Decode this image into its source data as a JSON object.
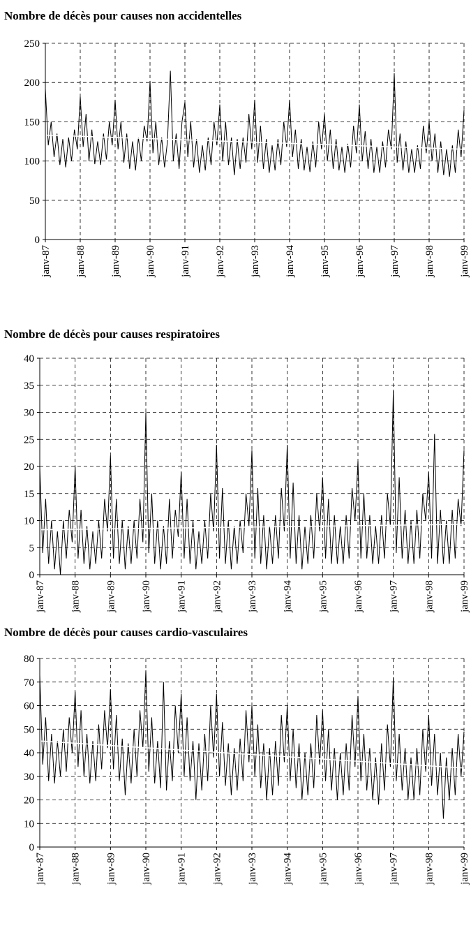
{
  "chart_data": [
    {
      "type": "line",
      "title": "Nombre de décès pour causes non accidentelles",
      "categories": [
        "janv-87",
        null,
        null,
        null,
        null,
        null,
        null,
        null,
        null,
        null,
        null,
        null,
        "janv-88",
        null,
        null,
        null,
        null,
        null,
        null,
        null,
        null,
        null,
        null,
        null,
        "janv-89",
        null,
        null,
        null,
        null,
        null,
        null,
        null,
        null,
        null,
        null,
        null,
        "janv-90",
        null,
        null,
        null,
        null,
        null,
        null,
        null,
        null,
        null,
        null,
        null,
        "janv-91",
        null,
        null,
        null,
        null,
        null,
        null,
        null,
        null,
        null,
        null,
        null,
        "janv-92",
        null,
        null,
        null,
        null,
        null,
        null,
        null,
        null,
        null,
        null,
        null,
        "janv-93",
        null,
        null,
        null,
        null,
        null,
        null,
        null,
        null,
        null,
        null,
        null,
        "janv-94",
        null,
        null,
        null,
        null,
        null,
        null,
        null,
        null,
        null,
        null,
        null,
        "janv-95",
        null,
        null,
        null,
        null,
        null,
        null,
        null,
        null,
        null,
        null,
        null,
        "janv-96",
        null,
        null,
        null,
        null,
        null,
        null,
        null,
        null,
        null,
        null,
        null,
        "janv-97",
        null,
        null,
        null,
        null,
        null,
        null,
        null,
        null,
        null,
        null,
        null,
        "janv-98",
        null,
        null,
        null,
        null,
        null,
        null,
        null,
        null,
        null,
        null,
        null,
        "janv-99"
      ],
      "series": [
        {
          "color": "#000000",
          "values": [
            192,
            120,
            150,
            105,
            135,
            95,
            128,
            92,
            130,
            100,
            140,
            115,
            182,
            118,
            160,
            100,
            140,
            96,
            125,
            95,
            135,
            102,
            150,
            120,
            178,
            115,
            150,
            98,
            135,
            90,
            125,
            88,
            130,
            100,
            145,
            125,
            202,
            110,
            150,
            95,
            130,
            92,
            125,
            215,
            100,
            135,
            90,
            150,
            175,
            105,
            150,
            92,
            128,
            85,
            120,
            88,
            130,
            95,
            150,
            120,
            172,
            100,
            150,
            95,
            130,
            82,
            128,
            90,
            130,
            98,
            160,
            115,
            178,
            98,
            145,
            90,
            128,
            85,
            120,
            88,
            128,
            95,
            150,
            118,
            178,
            105,
            140,
            90,
            128,
            88,
            118,
            86,
            125,
            92,
            150,
            115,
            160,
            100,
            140,
            90,
            128,
            88,
            118,
            85,
            122,
            92,
            145,
            110,
            172,
            100,
            138,
            90,
            128,
            85,
            118,
            85,
            125,
            92,
            140,
            115,
            212,
            98,
            135,
            88,
            125,
            85,
            115,
            85,
            120,
            90,
            145,
            110,
            150,
            100,
            135,
            85,
            125,
            82,
            115,
            80,
            120,
            85,
            140,
            105,
            165
          ]
        }
      ],
      "trendline": {
        "color": "#ffffff",
        "start": 133,
        "end": 115
      },
      "ylim": [
        0,
        250
      ],
      "yticks": [
        0,
        50,
        100,
        150,
        200,
        250
      ],
      "grid": true
    },
    {
      "type": "line",
      "title": "Nombre de décès pour causes respiratoires",
      "categories": [
        "janv-87",
        null,
        null,
        null,
        null,
        null,
        null,
        null,
        null,
        null,
        null,
        null,
        "janv-88",
        null,
        null,
        null,
        null,
        null,
        null,
        null,
        null,
        null,
        null,
        null,
        "janv-89",
        null,
        null,
        null,
        null,
        null,
        null,
        null,
        null,
        null,
        null,
        null,
        "janv-90",
        null,
        null,
        null,
        null,
        null,
        null,
        null,
        null,
        null,
        null,
        null,
        "janv-91",
        null,
        null,
        null,
        null,
        null,
        null,
        null,
        null,
        null,
        null,
        null,
        "janv-92",
        null,
        null,
        null,
        null,
        null,
        null,
        null,
        null,
        null,
        null,
        null,
        "janv-93",
        null,
        null,
        null,
        null,
        null,
        null,
        null,
        null,
        null,
        null,
        null,
        "janv-94",
        null,
        null,
        null,
        null,
        null,
        null,
        null,
        null,
        null,
        null,
        null,
        "janv-95",
        null,
        null,
        null,
        null,
        null,
        null,
        null,
        null,
        null,
        null,
        null,
        "janv-96",
        null,
        null,
        null,
        null,
        null,
        null,
        null,
        null,
        null,
        null,
        null,
        "janv-97",
        null,
        null,
        null,
        null,
        null,
        null,
        null,
        null,
        null,
        null,
        null,
        "janv-98",
        null,
        null,
        null,
        null,
        null,
        null,
        null,
        null,
        null,
        null,
        null,
        "janv-99"
      ],
      "series": [
        {
          "color": "#000000",
          "values": [
            20,
            4,
            14,
            2,
            10,
            1,
            8,
            0,
            10,
            3,
            12,
            6,
            20,
            3,
            12,
            2,
            9,
            1,
            8,
            2,
            10,
            3,
            14,
            8,
            22,
            3,
            14,
            2,
            10,
            1,
            9,
            2,
            10,
            3,
            14,
            6,
            30,
            4,
            15,
            2,
            10,
            1,
            9,
            2,
            14,
            3,
            12,
            7,
            19,
            3,
            14,
            2,
            10,
            1,
            8,
            2,
            10,
            3,
            15,
            8,
            24,
            3,
            16,
            2,
            10,
            1,
            9,
            2,
            10,
            4,
            15,
            9,
            23,
            3,
            16,
            2,
            11,
            1,
            9,
            2,
            11,
            3,
            16,
            8,
            24,
            3,
            17,
            2,
            11,
            1,
            9,
            2,
            11,
            3,
            15,
            8,
            18,
            3,
            14,
            2,
            11,
            2,
            9,
            2,
            11,
            3,
            16,
            10,
            21,
            3,
            15,
            3,
            11,
            2,
            9,
            2,
            11,
            3,
            15,
            9,
            34,
            4,
            18,
            3,
            12,
            2,
            10,
            2,
            12,
            3,
            15,
            10,
            19,
            3,
            26,
            2,
            12,
            2,
            10,
            2,
            12,
            3,
            14,
            9,
            23
          ]
        }
      ],
      "trendline": {
        "color": "#ffffff",
        "start": 8.3,
        "end": 9.3
      },
      "ylim": [
        0,
        40
      ],
      "yticks": [
        0,
        5,
        10,
        15,
        20,
        25,
        30,
        35,
        40
      ],
      "grid": true
    },
    {
      "type": "line",
      "title": "Nombre de décès pour causes cardio-vasculaires",
      "categories": [
        "janv-87",
        null,
        null,
        null,
        null,
        null,
        null,
        null,
        null,
        null,
        null,
        null,
        "janv-88",
        null,
        null,
        null,
        null,
        null,
        null,
        null,
        null,
        null,
        null,
        null,
        "janv-89",
        null,
        null,
        null,
        null,
        null,
        null,
        null,
        null,
        null,
        null,
        null,
        "janv-90",
        null,
        null,
        null,
        null,
        null,
        null,
        null,
        null,
        null,
        null,
        null,
        "janv-91",
        null,
        null,
        null,
        null,
        null,
        null,
        null,
        null,
        null,
        null,
        null,
        "janv-92",
        null,
        null,
        null,
        null,
        null,
        null,
        null,
        null,
        null,
        null,
        null,
        "janv-93",
        null,
        null,
        null,
        null,
        null,
        null,
        null,
        null,
        null,
        null,
        null,
        "janv-94",
        null,
        null,
        null,
        null,
        null,
        null,
        null,
        null,
        null,
        null,
        null,
        "janv-95",
        null,
        null,
        null,
        null,
        null,
        null,
        null,
        null,
        null,
        null,
        null,
        "janv-96",
        null,
        null,
        null,
        null,
        null,
        null,
        null,
        null,
        null,
        null,
        null,
        "janv-97",
        null,
        null,
        null,
        null,
        null,
        null,
        null,
        null,
        null,
        null,
        null,
        "janv-98",
        null,
        null,
        null,
        null,
        null,
        null,
        null,
        null,
        null,
        null,
        null,
        "janv-99"
      ],
      "series": [
        {
          "color": "#000000",
          "values": [
            73,
            35,
            55,
            28,
            48,
            27,
            45,
            30,
            50,
            32,
            55,
            40,
            66,
            34,
            58,
            30,
            48,
            27,
            45,
            28,
            52,
            33,
            58,
            42,
            67,
            33,
            56,
            28,
            46,
            22,
            44,
            27,
            50,
            30,
            58,
            42,
            75,
            32,
            55,
            27,
            45,
            25,
            70,
            24,
            45,
            28,
            60,
            40,
            65,
            30,
            55,
            28,
            45,
            20,
            44,
            24,
            48,
            28,
            60,
            38,
            65,
            30,
            53,
            26,
            44,
            22,
            42,
            24,
            46,
            28,
            58,
            36,
            60,
            30,
            52,
            25,
            44,
            20,
            42,
            22,
            45,
            26,
            56,
            36,
            60,
            28,
            50,
            25,
            44,
            20,
            40,
            22,
            44,
            25,
            56,
            35,
            58,
            28,
            50,
            24,
            42,
            20,
            40,
            22,
            44,
            24,
            56,
            34,
            64,
            28,
            48,
            24,
            42,
            20,
            38,
            18,
            44,
            24,
            52,
            34,
            72,
            28,
            48,
            24,
            42,
            20,
            38,
            20,
            42,
            22,
            50,
            32,
            56,
            26,
            48,
            22,
            40,
            12,
            38,
            20,
            42,
            22,
            48,
            30,
            49
          ]
        }
      ],
      "trendline": {
        "color": "#ffffff",
        "start": 45,
        "end": 33.5
      },
      "ylim": [
        0,
        80
      ],
      "yticks": [
        0,
        10,
        20,
        30,
        40,
        50,
        60,
        70,
        80
      ],
      "grid": true
    }
  ]
}
